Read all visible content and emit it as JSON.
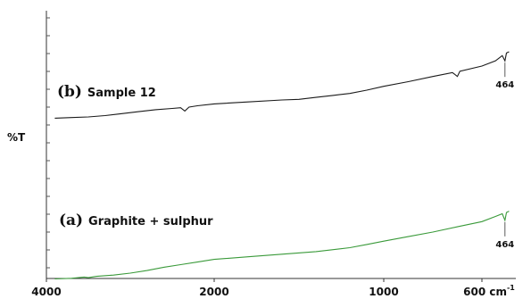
{
  "chart_data": {
    "type": "line",
    "ylabel": "%T",
    "x_ticks": [
      {
        "value": 4000,
        "label": "4000"
      },
      {
        "value": 2000,
        "label": "2000"
      },
      {
        "value": 1000,
        "label": "1000"
      },
      {
        "value": 600,
        "label": "600 cm"
      }
    ],
    "x_unit_suffix": "-1",
    "series": [
      {
        "prefix": "(b)",
        "name": "Sample 12",
        "color": "#1a1a1a",
        "peak_label": "464",
        "points": [
          [
            3900,
            23
          ],
          [
            3700,
            23.5
          ],
          [
            3500,
            24
          ],
          [
            3300,
            25
          ],
          [
            3100,
            26.5
          ],
          [
            2900,
            28
          ],
          [
            2700,
            29.5
          ],
          [
            2500,
            30.5
          ],
          [
            2400,
            31
          ],
          [
            2350,
            28.5
          ],
          [
            2300,
            31.5
          ],
          [
            2200,
            32.5
          ],
          [
            2000,
            34
          ],
          [
            1800,
            35.5
          ],
          [
            1600,
            37
          ],
          [
            1500,
            37.5
          ],
          [
            1400,
            39
          ],
          [
            1300,
            40.5
          ],
          [
            1200,
            42
          ],
          [
            1100,
            44.5
          ],
          [
            1000,
            47.5
          ],
          [
            900,
            51
          ],
          [
            800,
            55
          ],
          [
            720,
            58
          ],
          [
            700,
            55
          ],
          [
            690,
            59
          ],
          [
            600,
            63
          ],
          [
            520,
            67
          ],
          [
            480,
            71
          ],
          [
            464,
            67
          ],
          [
            455,
            73
          ],
          [
            440,
            74
          ]
        ]
      },
      {
        "prefix": "(a)",
        "name": "Graphite + sulphur",
        "color": "#3a9a3a",
        "peak_label": "464",
        "points": [
          [
            3900,
            1
          ],
          [
            3700,
            1.5
          ],
          [
            3550,
            2.5
          ],
          [
            3500,
            2
          ],
          [
            3400,
            3
          ],
          [
            3200,
            4
          ],
          [
            3000,
            5.5
          ],
          [
            2800,
            7.5
          ],
          [
            2600,
            10
          ],
          [
            2400,
            12
          ],
          [
            2200,
            14
          ],
          [
            2000,
            16
          ],
          [
            1800,
            18
          ],
          [
            1600,
            20
          ],
          [
            1400,
            22
          ],
          [
            1200,
            25
          ],
          [
            1100,
            27.5
          ],
          [
            1000,
            30
          ],
          [
            900,
            33.5
          ],
          [
            800,
            37
          ],
          [
            700,
            41
          ],
          [
            600,
            45
          ],
          [
            520,
            49
          ],
          [
            480,
            51
          ],
          [
            464,
            46
          ],
          [
            455,
            52
          ],
          [
            440,
            53
          ]
        ]
      }
    ]
  }
}
